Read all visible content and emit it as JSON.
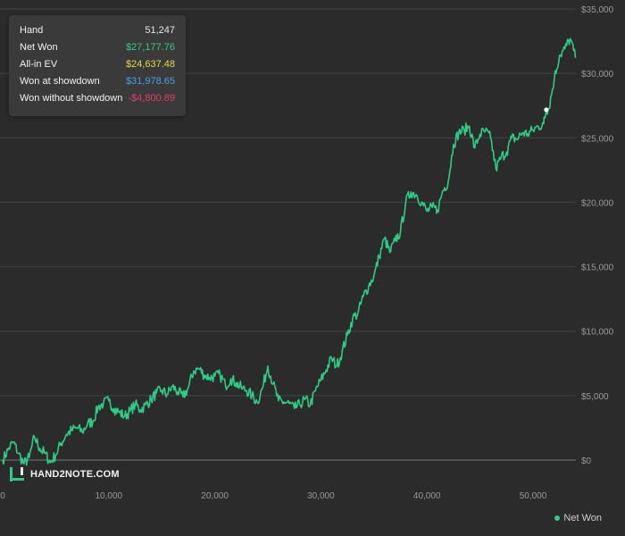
{
  "tooltip": {
    "rows": [
      {
        "label": "Hand",
        "value": "51,247",
        "color": "#e6e6e6"
      },
      {
        "label": "Net Won",
        "value": "$27,177.76",
        "color": "#2ecc87"
      },
      {
        "label": "All-in EV",
        "value": "$24,637.48",
        "color": "#e5d84a"
      },
      {
        "label": "Won at showdown",
        "value": "$31,978.65",
        "color": "#4a9fe8"
      },
      {
        "label": "Won without showdown",
        "value": "-$4,800.89",
        "color": "#e0406b"
      }
    ]
  },
  "logo": {
    "text": "HAND2NOTE.COM",
    "icon": "h2n-logo-icon"
  },
  "legend": {
    "label": "Net Won",
    "color": "#2ecc87"
  },
  "chart_data": {
    "type": "line",
    "title": "",
    "xlabel": "",
    "ylabel": "",
    "xlim": [
      0,
      55000
    ],
    "ylim": [
      -1000,
      35000
    ],
    "x_ticks": [
      0,
      10000,
      20000,
      30000,
      40000,
      50000
    ],
    "x_tick_labels": [
      "0",
      "10,000",
      "20,000",
      "30,000",
      "40,000",
      "50,000"
    ],
    "y_ticks": [
      0,
      5000,
      10000,
      15000,
      20000,
      25000,
      30000,
      35000
    ],
    "y_tick_labels": [
      "$0",
      "$5,000",
      "$10,000",
      "$15,000",
      "$20,000",
      "$25,000",
      "$30,000",
      "$35,000"
    ],
    "grid": true,
    "legend_position": "bottom-right",
    "highlight_point": {
      "x": 51247,
      "y": 27177.76
    },
    "series": [
      {
        "name": "Net Won",
        "color": "#2ecc87",
        "x": [
          0,
          500,
          1000,
          1500,
          2000,
          2500,
          3000,
          3500,
          4000,
          4500,
          5000,
          5500,
          6000,
          6500,
          7000,
          7500,
          8000,
          8500,
          9000,
          9500,
          10000,
          10500,
          11000,
          11500,
          12000,
          12500,
          13000,
          13500,
          14000,
          14500,
          15000,
          15500,
          16000,
          16500,
          17000,
          17500,
          18000,
          18500,
          19000,
          19500,
          20000,
          20500,
          21000,
          21500,
          22000,
          22500,
          23000,
          23500,
          24000,
          24500,
          25000,
          25500,
          26000,
          26500,
          27000,
          27500,
          28000,
          28500,
          29000,
          29500,
          30000,
          30500,
          31000,
          31500,
          32000,
          32500,
          33000,
          33500,
          34000,
          34500,
          35000,
          35500,
          36000,
          36500,
          37000,
          37500,
          38000,
          38500,
          39000,
          39500,
          40000,
          40500,
          41000,
          41500,
          42000,
          42500,
          43000,
          43500,
          44000,
          44500,
          45000,
          45500,
          46000,
          46500,
          47000,
          47500,
          48000,
          48500,
          49000,
          49500,
          50000,
          50500,
          51000,
          51247,
          51500,
          52000,
          52500,
          53000,
          53500,
          54000
        ],
        "values": [
          0,
          800,
          1400,
          500,
          -300,
          200,
          1800,
          900,
          500,
          -200,
          400,
          1300,
          2000,
          2300,
          2500,
          2200,
          2800,
          3000,
          4100,
          4400,
          4600,
          4000,
          3700,
          3400,
          3800,
          4300,
          3900,
          4300,
          4700,
          5200,
          5400,
          5100,
          5700,
          5300,
          4900,
          5600,
          6900,
          7100,
          6600,
          6400,
          6500,
          6600,
          5800,
          6300,
          6000,
          5600,
          5400,
          5000,
          4500,
          5600,
          7300,
          5900,
          4600,
          4500,
          4400,
          4000,
          4300,
          4700,
          4300,
          5400,
          6200,
          7000,
          7900,
          7300,
          8400,
          9700,
          11000,
          11400,
          12700,
          13500,
          14300,
          15800,
          17200,
          16100,
          17000,
          17700,
          20000,
          20800,
          20600,
          20000,
          19300,
          19600,
          19400,
          20900,
          21600,
          24500,
          25400,
          25600,
          25900,
          24200,
          25300,
          25500,
          25000,
          22600,
          23500,
          23900,
          25000,
          24900,
          25400,
          25300,
          25600,
          25900,
          26100,
          27177.76,
          27300,
          29600,
          31400,
          31900,
          32700,
          31200
        ]
      }
    ]
  }
}
